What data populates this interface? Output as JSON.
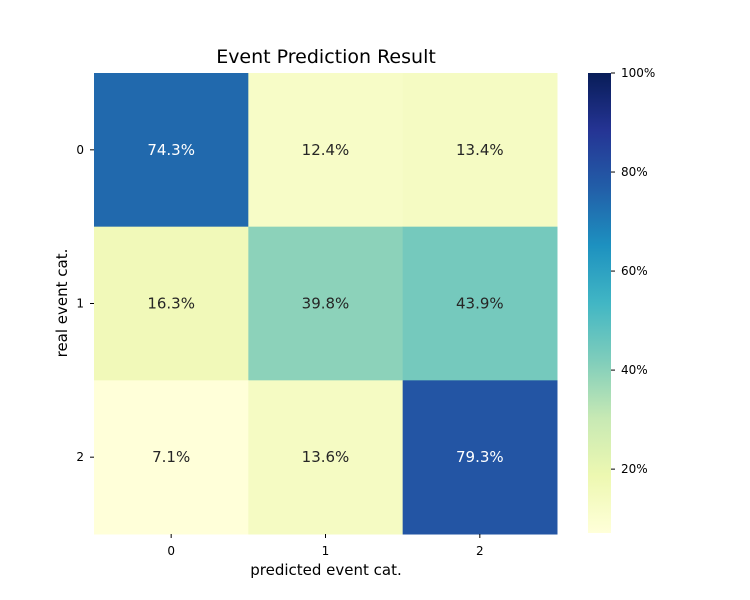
{
  "chart_data": {
    "type": "heatmap",
    "title": "Event Prediction Result",
    "xlabel": "predicted event cat.",
    "ylabel": "real event cat.",
    "x_categories": [
      "0",
      "1",
      "2"
    ],
    "y_categories": [
      "0",
      "1",
      "2"
    ],
    "values": [
      [
        74.3,
        12.4,
        13.4
      ],
      [
        16.3,
        39.8,
        43.9
      ],
      [
        7.1,
        13.6,
        79.3
      ]
    ],
    "cell_labels": [
      [
        "74.3%",
        "12.4%",
        "13.4%"
      ],
      [
        "16.3%",
        "39.8%",
        "43.9%"
      ],
      [
        "7.1%",
        "13.6%",
        "79.3%"
      ]
    ],
    "colormap": "YlGnBu",
    "color_range": [
      7.1,
      100
    ],
    "colorbar_ticks": [
      {
        "value": 100,
        "label": "100%"
      },
      {
        "value": 80,
        "label": "80%"
      },
      {
        "value": 60,
        "label": "60%"
      },
      {
        "value": 40,
        "label": "40%"
      },
      {
        "value": 20,
        "label": "20%"
      }
    ],
    "text_color_dark": "#262626",
    "text_color_light": "#ffffff"
  }
}
